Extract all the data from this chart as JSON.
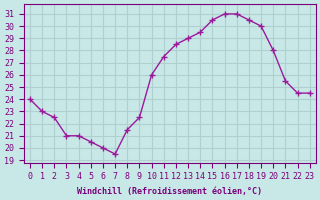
{
  "x": [
    0,
    1,
    2,
    3,
    4,
    5,
    6,
    7,
    8,
    9,
    10,
    11,
    12,
    13,
    14,
    15,
    16,
    17,
    18,
    19,
    20,
    21,
    22,
    23
  ],
  "y": [
    24.0,
    23.0,
    22.5,
    21.0,
    21.0,
    20.5,
    20.0,
    19.5,
    21.5,
    22.5,
    26.0,
    27.5,
    28.5,
    29.0,
    29.5,
    30.5,
    31.0,
    31.0,
    30.5,
    30.0,
    28.0,
    25.5,
    24.5,
    24.5
  ],
  "line_color": "#9b1a9b",
  "marker": "+",
  "marker_size": 4,
  "bg_color": "#c8e8e8",
  "grid_color": "#b0d0d0",
  "xlabel": "Windchill (Refroidissement éolien,°C)",
  "ylabel_ticks": [
    19,
    20,
    21,
    22,
    23,
    24,
    25,
    26,
    27,
    28,
    29,
    30,
    31
  ],
  "ylim": [
    18.8,
    31.8
  ],
  "xlim": [
    -0.5,
    23.5
  ],
  "tick_color": "#7a007a",
  "label_color": "#7a007a",
  "font_family": "monospace"
}
